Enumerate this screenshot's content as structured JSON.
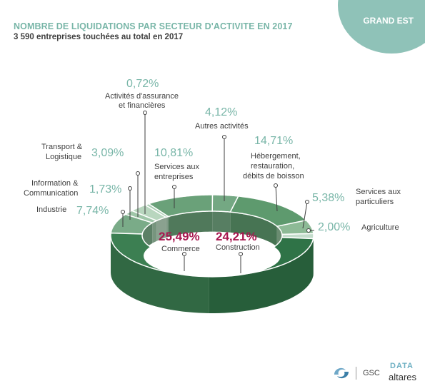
{
  "header": {
    "region": "GRAND EST",
    "title": "NOMBRE DE LIQUIDATIONS PAR SECTEUR D'ACTIVITE EN 2017",
    "subtitle": "3 590 entreprises touchées au total en 2017"
  },
  "footer": {
    "gsc": "GSC",
    "data_logo": "DATA",
    "altares_logo": "altares"
  },
  "colors": {
    "accent": "#79b6a8",
    "highlight": "#a8174f",
    "text": "#3f3f3f"
  },
  "chart_data": {
    "type": "pie",
    "donut": true,
    "three_d": true,
    "total": 3590,
    "unit": "%",
    "slices": [
      {
        "label": "Agriculture",
        "value": 2.0,
        "display": "2,00%"
      },
      {
        "label": "Services aux particuliers",
        "value": 5.38,
        "display": "5,38%"
      },
      {
        "label": "Hébergement, restauration, débits de boisson",
        "value": 14.71,
        "display": "14,71%"
      },
      {
        "label": "Autres activités",
        "value": 4.12,
        "display": "4,12%"
      },
      {
        "label": "Services aux entreprises",
        "value": 10.81,
        "display": "10,81%"
      },
      {
        "label": "Activités d'assurance et financières",
        "value": 0.72,
        "display": "0,72%"
      },
      {
        "label": "Transport & Logistique",
        "value": 3.09,
        "display": "3,09%"
      },
      {
        "label": "Information & Communication",
        "value": 1.73,
        "display": "1,73%"
      },
      {
        "label": "Industrie",
        "value": 7.74,
        "display": "7,74%"
      },
      {
        "label": "Commerce",
        "value": 25.49,
        "display": "25,49%"
      },
      {
        "label": "Construction",
        "value": 24.21,
        "display": "24,21%"
      }
    ]
  }
}
